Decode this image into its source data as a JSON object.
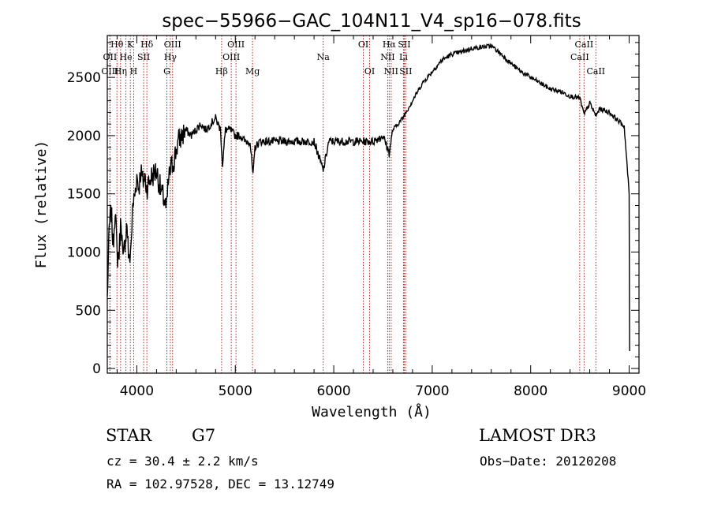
{
  "chart_data": {
    "type": "line",
    "title": "spec−55966−GAC_104N11_V4_sp16−078.fits",
    "xlabel": "Wavelength (Å)",
    "ylabel": "Flux (relative)",
    "xlim": [
      3700,
      9100
    ],
    "ylim": [
      -40,
      2860
    ],
    "xticks": [
      4000,
      5000,
      6000,
      7000,
      8000,
      9000
    ],
    "yticks": [
      0,
      500,
      1000,
      1500,
      2000,
      2500
    ],
    "series": [
      {
        "name": "flux",
        "x": [
          3700,
          3720,
          3740,
          3760,
          3780,
          3800,
          3820,
          3840,
          3860,
          3880,
          3900,
          3920,
          3940,
          3960,
          3980,
          4000,
          4020,
          4040,
          4060,
          4080,
          4100,
          4150,
          4200,
          4250,
          4280,
          4300,
          4320,
          4340,
          4380,
          4420,
          4460,
          4500,
          4550,
          4600,
          4650,
          4700,
          4750,
          4800,
          4850,
          4870,
          4900,
          4950,
          5000,
          5050,
          5100,
          5150,
          5180,
          5200,
          5250,
          5300,
          5400,
          5500,
          5600,
          5700,
          5800,
          5893,
          5950,
          6000,
          6100,
          6200,
          6300,
          6400,
          6500,
          6563,
          6600,
          6700,
          6800,
          6900,
          7000,
          7100,
          7200,
          7300,
          7400,
          7500,
          7600,
          7700,
          7800,
          7900,
          8000,
          8100,
          8200,
          8300,
          8400,
          8500,
          8542,
          8600,
          8662,
          8700,
          8800,
          8900,
          8950,
          9000
        ],
        "values": [
          600,
          1200,
          1350,
          1050,
          1400,
          950,
          1000,
          1300,
          900,
          1100,
          1250,
          900,
          1050,
          1400,
          1500,
          1650,
          1550,
          1700,
          1600,
          1650,
          1550,
          1650,
          1700,
          1500,
          1450,
          1350,
          1600,
          1700,
          1800,
          1950,
          2000,
          2050,
          2000,
          2050,
          2100,
          2050,
          2100,
          2150,
          2050,
          1750,
          2050,
          2050,
          2000,
          2000,
          1950,
          1950,
          1650,
          1900,
          1950,
          1950,
          1950,
          1950,
          1950,
          1950,
          1950,
          1700,
          1950,
          1950,
          1950,
          1950,
          1950,
          1950,
          2000,
          1850,
          2050,
          2150,
          2300,
          2450,
          2550,
          2650,
          2700,
          2720,
          2750,
          2760,
          2770,
          2700,
          2620,
          2550,
          2500,
          2450,
          2400,
          2380,
          2340,
          2320,
          2180,
          2280,
          2170,
          2230,
          2200,
          2120,
          2080,
          1500
        ]
      }
    ],
    "lines": [
      {
        "label": "Hθ",
        "wave": 3798
      },
      {
        "label": "OII",
        "wave": 3727
      },
      {
        "label": "OIII",
        "wave": 3727
      },
      {
        "label": "K",
        "wave": 3934
      },
      {
        "label": "He",
        "wave": 3889
      },
      {
        "label": "Hη",
        "wave": 3835
      },
      {
        "label": "H",
        "wave": 3968
      },
      {
        "label": "SII",
        "wave": 4069
      },
      {
        "label": "Hδ",
        "wave": 4102
      },
      {
        "label": "OIII",
        "wave": 4363
      },
      {
        "label": "Hγ",
        "wave": 4340
      },
      {
        "label": "G",
        "wave": 4305
      },
      {
        "label": "Hβ",
        "wave": 4861
      },
      {
        "label": "OIII",
        "wave": 5007
      },
      {
        "label": "OIII",
        "wave": 4959
      },
      {
        "label": "Mg",
        "wave": 5175
      },
      {
        "label": "Na",
        "wave": 5893
      },
      {
        "label": "OI",
        "wave": 6300
      },
      {
        "label": "OI",
        "wave": 6364
      },
      {
        "label": "Hα",
        "wave": 6563
      },
      {
        "label": "SII",
        "wave": 6716
      },
      {
        "label": "NII",
        "wave": 6548
      },
      {
        "label": "Li",
        "wave": 6708
      },
      {
        "label": "NII",
        "wave": 6583
      },
      {
        "label": "SII",
        "wave": 6731
      },
      {
        "label": "CaII",
        "wave": 8542
      },
      {
        "label": "CaII",
        "wave": 8498
      },
      {
        "label": "CaII",
        "wave": 8662
      }
    ]
  },
  "info": {
    "class": "STAR",
    "subclass": "G7",
    "survey": "LAMOST DR3",
    "cz": "cz = 30.4 ± 2.2 km/s",
    "obs_date": "Obs−Date: 20120208",
    "coords": "RA = 102.97528, DEC =  13.12749"
  }
}
